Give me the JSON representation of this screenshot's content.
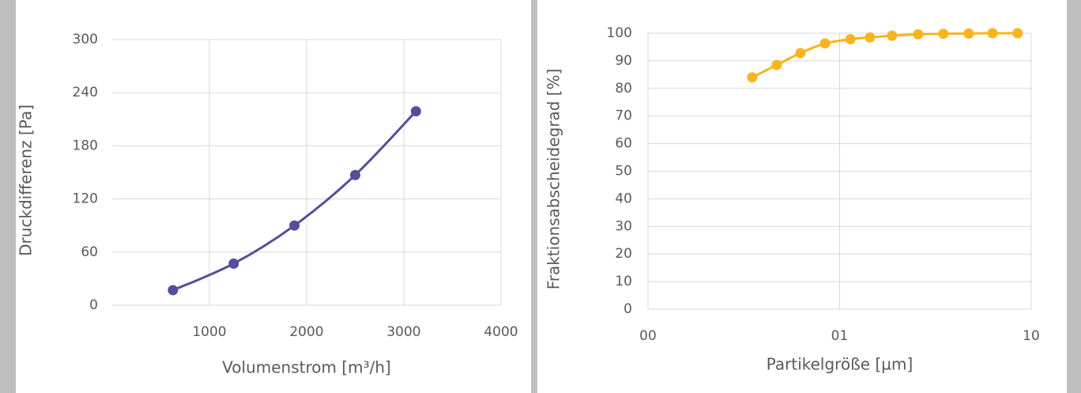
{
  "chart_data": [
    {
      "type": "scatter",
      "smooth": true,
      "x_label": "Volumenstrom  [m³/h]",
      "y_label": "Druckdifferenz [Pa]",
      "x": [
        625,
        1250,
        1875,
        2500,
        3125
      ],
      "values": [
        17,
        47,
        90,
        147,
        219
      ],
      "color": "#524e9c",
      "xlim": [
        0,
        4000
      ],
      "xticks": [
        1000,
        2000,
        3000,
        4000
      ],
      "ylim": [
        0,
        300
      ],
      "yticks": [
        0,
        60,
        120,
        180,
        240,
        300
      ],
      "grid": true
    },
    {
      "type": "scatter",
      "smooth": true,
      "x_label": "Partikelgröße [µm]",
      "y_label": "Fraktionsabscheidegrad [%]",
      "x": [
        0.35,
        0.47,
        0.625,
        0.84,
        1.14,
        1.44,
        1.88,
        2.57,
        3.48,
        4.72,
        6.28,
        8.5
      ],
      "values": [
        84,
        88.5,
        92.8,
        96.3,
        97.8,
        98.5,
        99.1,
        99.6,
        99.8,
        99.9,
        100,
        100
      ],
      "color": "#fbb41a",
      "xlog": true,
      "xlim": [
        0.1,
        10
      ],
      "xticks": [
        {
          "value": 0.1,
          "label": "00"
        },
        {
          "value": 1,
          "label": "01"
        },
        10
      ],
      "ylim": [
        0,
        100
      ],
      "yticks": [
        0,
        10,
        20,
        30,
        40,
        50,
        60,
        70,
        80,
        90,
        100
      ],
      "grid": true
    }
  ]
}
